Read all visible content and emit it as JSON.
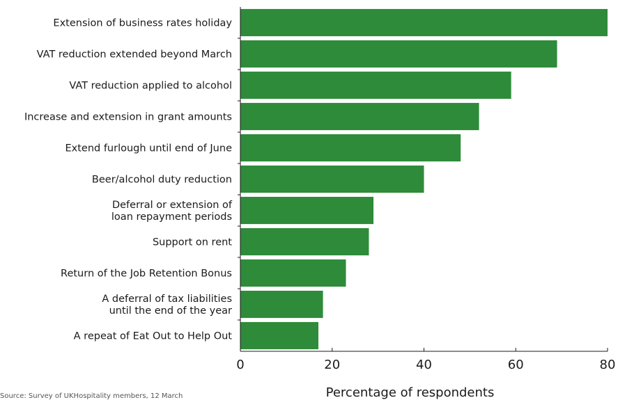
{
  "chart_data": {
    "type": "bar",
    "orientation": "horizontal",
    "categories": [
      [
        "Extension of business rates holiday"
      ],
      [
        "VAT reduction extended beyond March"
      ],
      [
        "VAT reduction applied to alcohol"
      ],
      [
        "Increase and extension in grant amounts"
      ],
      [
        "Extend furlough until end of June"
      ],
      [
        "Beer/alcohol duty reduction"
      ],
      [
        "Deferral or extension of",
        "loan repayment periods"
      ],
      [
        "Support on rent"
      ],
      [
        "Return of the Job Retention Bonus"
      ],
      [
        "A deferral of tax liabilities",
        "until the end of the year"
      ],
      [
        "A repeat of Eat Out to Help Out"
      ]
    ],
    "values": [
      80,
      69,
      59,
      52,
      48,
      40,
      29,
      28,
      23,
      18,
      17
    ],
    "xlabel": "Percentage of respondents",
    "ylabel": "",
    "xlim": [
      0,
      80
    ],
    "xticks": [
      "0",
      "20",
      "40",
      "60",
      "80"
    ],
    "bar_color": "#2e8b3a",
    "grid": false,
    "source_note": "Source: Survey of UKHospitality members, 12 March"
  }
}
